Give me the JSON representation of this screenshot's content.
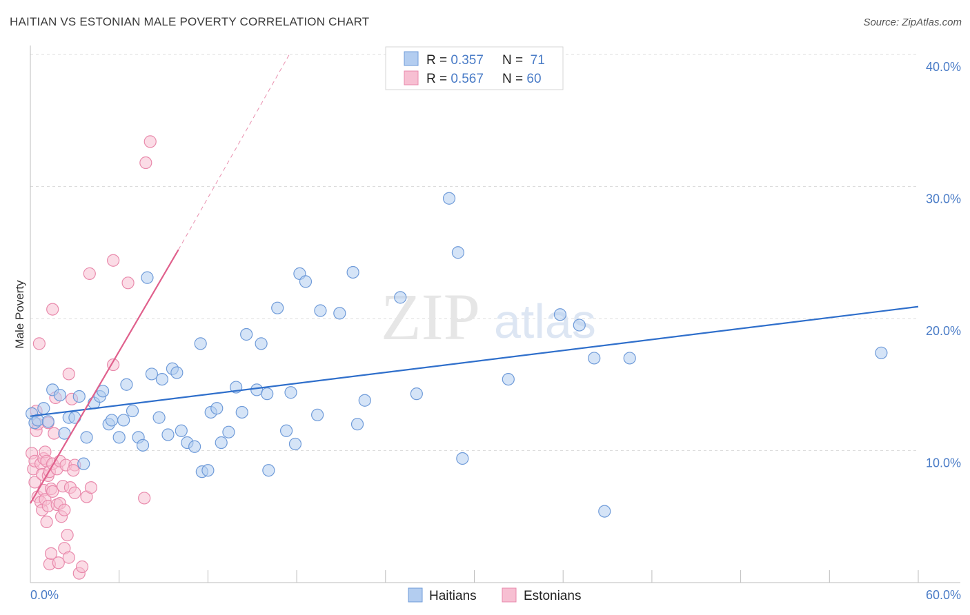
{
  "header": {
    "title": "HAITIAN VS ESTONIAN MALE POVERTY CORRELATION CHART",
    "source": "Source: ZipAtlas.com"
  },
  "watermark": {
    "zip": "ZIP",
    "atlas": "atlas"
  },
  "colors": {
    "haitians_fill": "#b3cdf0",
    "haitians_stroke": "#6f9bd9",
    "haitians_line": "#2f6fcb",
    "estonians_fill": "#f7bfd2",
    "estonians_stroke": "#e98aac",
    "estonians_line": "#e0608c",
    "tick_label": "#4a7cc7"
  },
  "legend_top": {
    "rows": [
      {
        "r_label": "R = ",
        "r_value": "0.357",
        "n_label": "N = ",
        "n_value": " 71"
      },
      {
        "r_label": "R = ",
        "r_value": "0.567",
        "n_label": "N = ",
        "n_value": "60"
      }
    ]
  },
  "legend_bottom": {
    "items": [
      "Haitians",
      "Estonians"
    ]
  },
  "chart_data": {
    "type": "scatter",
    "title": "HAITIAN VS ESTONIAN MALE POVERTY CORRELATION CHART",
    "xlabel": "",
    "ylabel": "Male Poverty",
    "xlim": [
      0,
      60
    ],
    "ylim": [
      0,
      40
    ],
    "x_tick_labels": [
      "0.0%",
      "60.0%"
    ],
    "y_ticks": [
      10,
      20,
      30,
      40
    ],
    "y_tick_labels": [
      "10.0%",
      "20.0%",
      "30.0%",
      "40.0%"
    ],
    "grid": "horizontal dashed",
    "legend": "top-center",
    "series": [
      {
        "name": "Haitians",
        "R": 0.357,
        "N": 71,
        "trend": {
          "x": [
            0,
            60
          ],
          "y": [
            12.6,
            20.9
          ]
        },
        "points": [
          [
            0.1,
            12.8
          ],
          [
            0.3,
            12.1
          ],
          [
            0.5,
            12.3
          ],
          [
            0.9,
            13.2
          ],
          [
            1.2,
            12.2
          ],
          [
            1.5,
            14.6
          ],
          [
            2.0,
            14.2
          ],
          [
            2.3,
            11.3
          ],
          [
            2.6,
            12.5
          ],
          [
            3.0,
            12.5
          ],
          [
            3.3,
            14.1
          ],
          [
            3.6,
            9.0
          ],
          [
            3.8,
            11.0
          ],
          [
            4.3,
            13.6
          ],
          [
            4.7,
            14.1
          ],
          [
            4.9,
            14.5
          ],
          [
            5.3,
            12.0
          ],
          [
            5.5,
            12.3
          ],
          [
            6.0,
            11.0
          ],
          [
            6.3,
            12.3
          ],
          [
            6.5,
            15.0
          ],
          [
            6.9,
            13.0
          ],
          [
            7.3,
            11.0
          ],
          [
            7.6,
            10.4
          ],
          [
            7.9,
            23.1
          ],
          [
            8.2,
            15.8
          ],
          [
            8.7,
            12.5
          ],
          [
            8.9,
            15.4
          ],
          [
            9.3,
            11.2
          ],
          [
            9.6,
            16.2
          ],
          [
            9.9,
            15.9
          ],
          [
            10.2,
            11.5
          ],
          [
            10.6,
            10.6
          ],
          [
            11.1,
            10.3
          ],
          [
            11.5,
            18.1
          ],
          [
            11.6,
            8.4
          ],
          [
            12.0,
            8.5
          ],
          [
            12.2,
            12.9
          ],
          [
            12.6,
            13.2
          ],
          [
            12.9,
            10.6
          ],
          [
            13.4,
            11.4
          ],
          [
            13.9,
            14.8
          ],
          [
            14.3,
            12.9
          ],
          [
            14.6,
            18.8
          ],
          [
            15.3,
            14.6
          ],
          [
            15.6,
            18.1
          ],
          [
            16.0,
            14.3
          ],
          [
            16.1,
            8.5
          ],
          [
            16.7,
            20.8
          ],
          [
            17.3,
            11.5
          ],
          [
            17.6,
            14.4
          ],
          [
            17.9,
            10.5
          ],
          [
            18.2,
            23.4
          ],
          [
            18.6,
            22.8
          ],
          [
            19.4,
            12.7
          ],
          [
            19.6,
            20.6
          ],
          [
            20.9,
            20.4
          ],
          [
            21.8,
            23.5
          ],
          [
            22.1,
            12.0
          ],
          [
            22.6,
            13.8
          ],
          [
            25.0,
            21.6
          ],
          [
            26.1,
            14.3
          ],
          [
            28.3,
            29.1
          ],
          [
            28.9,
            25.0
          ],
          [
            29.2,
            9.4
          ],
          [
            32.3,
            15.4
          ],
          [
            35.8,
            20.3
          ],
          [
            37.1,
            19.5
          ],
          [
            38.1,
            17.0
          ],
          [
            38.8,
            5.4
          ],
          [
            40.5,
            17.0
          ],
          [
            57.5,
            17.4
          ]
        ]
      },
      {
        "name": "Estonians",
        "R": 0.567,
        "N": 60,
        "trend": {
          "x": [
            0,
            10
          ],
          "y": [
            6.0,
            25.2
          ]
        },
        "trend_extended": {
          "x": [
            10,
            17.5
          ],
          "y": [
            25.2,
            40.0
          ]
        },
        "points": [
          [
            0.1,
            9.8
          ],
          [
            0.2,
            8.6
          ],
          [
            0.3,
            9.2
          ],
          [
            0.3,
            7.6
          ],
          [
            0.4,
            11.5
          ],
          [
            0.5,
            12.0
          ],
          [
            0.5,
            6.5
          ],
          [
            0.6,
            18.1
          ],
          [
            0.7,
            9.0
          ],
          [
            0.7,
            6.1
          ],
          [
            0.8,
            8.2
          ],
          [
            0.8,
            5.5
          ],
          [
            0.9,
            9.4
          ],
          [
            0.9,
            7.0
          ],
          [
            1.0,
            9.9
          ],
          [
            1.0,
            6.3
          ],
          [
            1.1,
            9.2
          ],
          [
            1.1,
            4.6
          ],
          [
            1.2,
            8.1
          ],
          [
            1.2,
            5.8
          ],
          [
            1.3,
            8.4
          ],
          [
            1.3,
            1.4
          ],
          [
            1.4,
            7.1
          ],
          [
            1.4,
            2.2
          ],
          [
            1.5,
            20.7
          ],
          [
            1.5,
            9.0
          ],
          [
            1.5,
            6.9
          ],
          [
            1.6,
            11.3
          ],
          [
            1.7,
            14.0
          ],
          [
            1.8,
            8.6
          ],
          [
            1.8,
            5.9
          ],
          [
            1.9,
            1.5
          ],
          [
            2.0,
            9.2
          ],
          [
            2.0,
            6.0
          ],
          [
            2.1,
            5.0
          ],
          [
            2.2,
            7.3
          ],
          [
            2.3,
            5.5
          ],
          [
            2.3,
            2.6
          ],
          [
            2.4,
            8.9
          ],
          [
            2.5,
            3.6
          ],
          [
            2.6,
            1.9
          ],
          [
            2.6,
            15.8
          ],
          [
            2.7,
            7.2
          ],
          [
            2.8,
            13.9
          ],
          [
            3.0,
            6.8
          ],
          [
            3.0,
            8.9
          ],
          [
            3.3,
            0.7
          ],
          [
            3.8,
            6.5
          ],
          [
            4.0,
            23.4
          ],
          [
            4.1,
            7.2
          ],
          [
            5.6,
            16.5
          ],
          [
            5.6,
            24.4
          ],
          [
            6.6,
            22.7
          ],
          [
            7.8,
            31.8
          ],
          [
            8.1,
            33.4
          ],
          [
            7.7,
            6.4
          ],
          [
            3.5,
            1.2
          ],
          [
            1.2,
            12.1
          ],
          [
            2.9,
            8.5
          ],
          [
            0.4,
            13.0
          ]
        ]
      }
    ]
  }
}
